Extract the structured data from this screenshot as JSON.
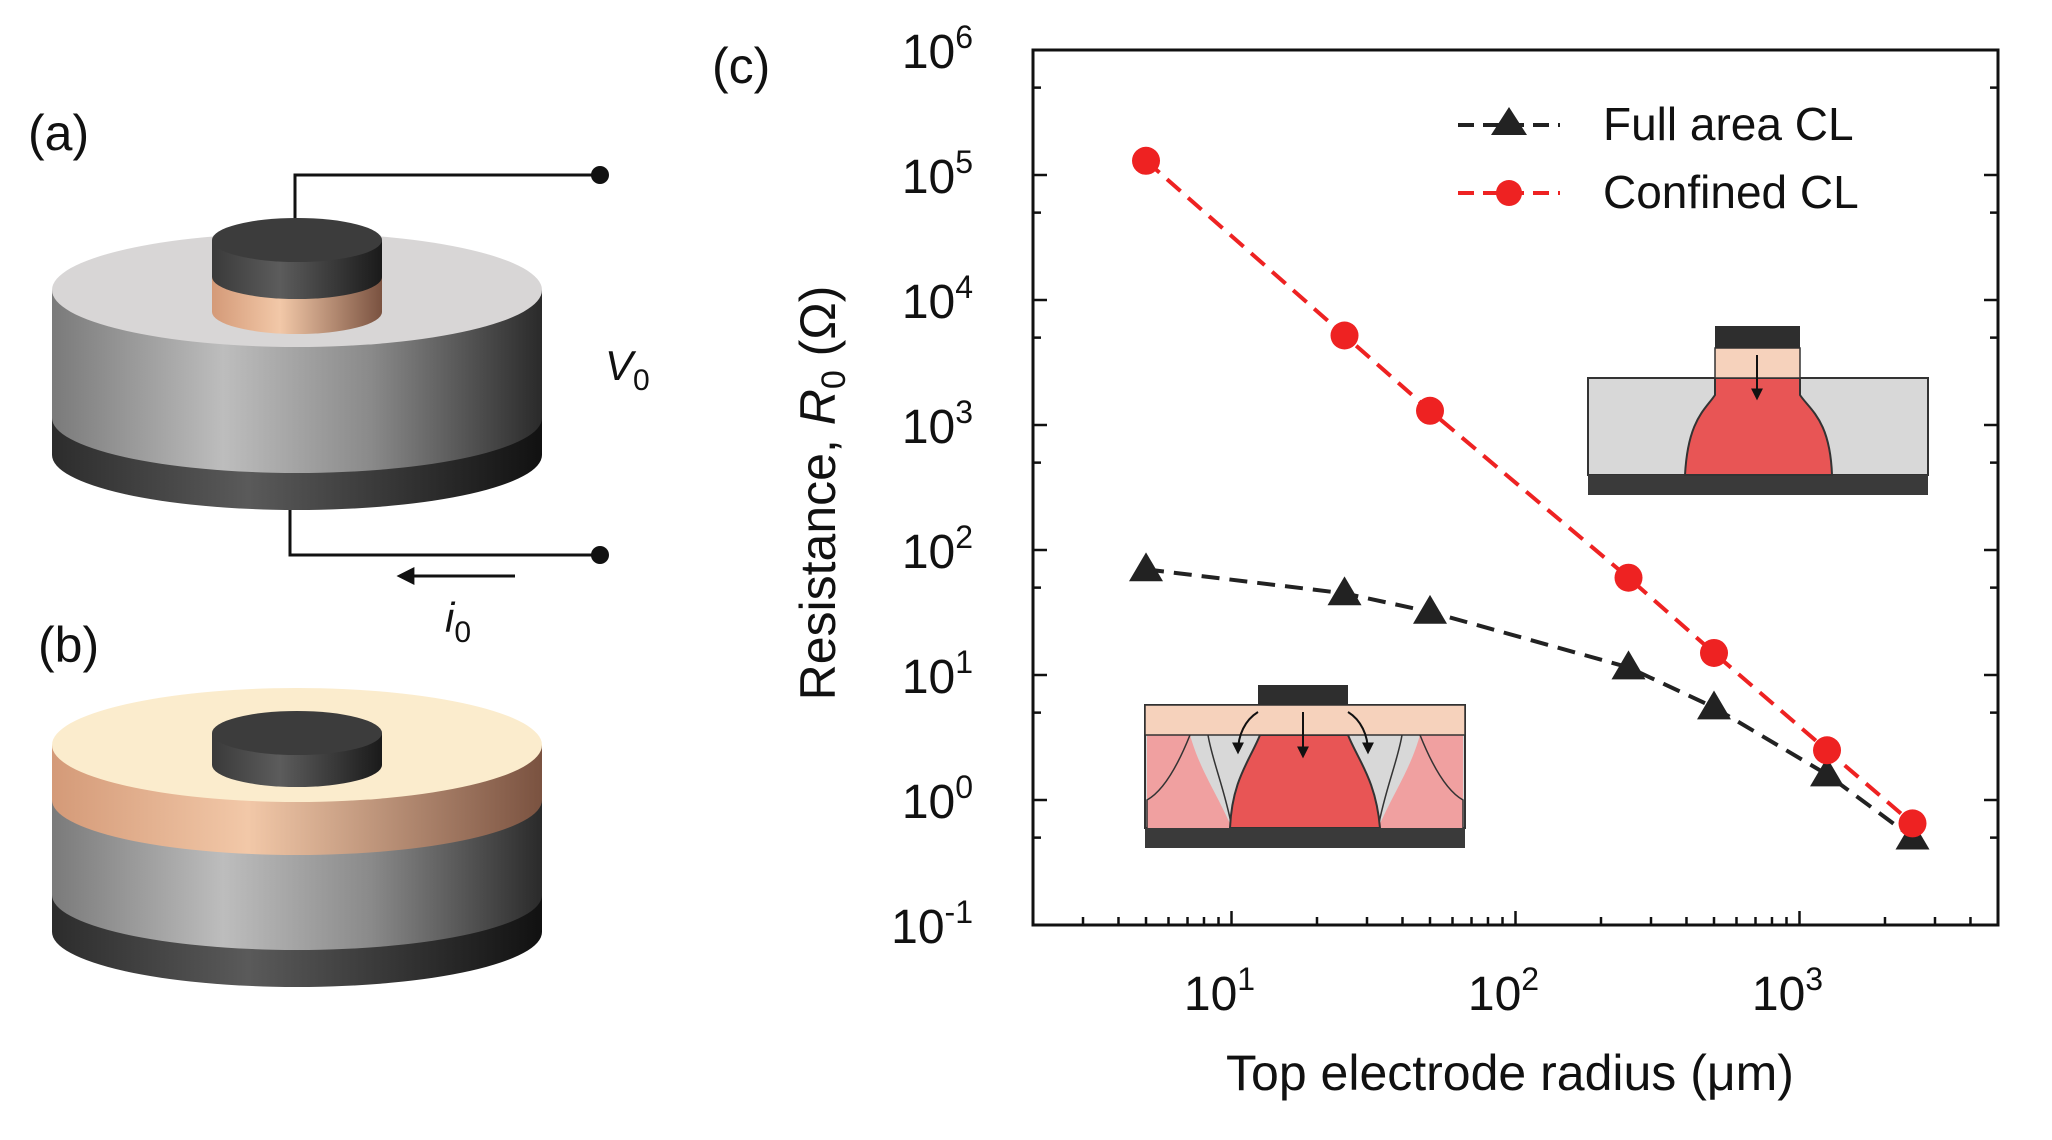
{
  "panels": {
    "a": "(a)",
    "b": "(b)",
    "c": "(c)"
  },
  "circuit": {
    "voltage_symbol": "V",
    "voltage_sub": "0",
    "current_symbol": "i",
    "current_sub": "0"
  },
  "chart_data": {
    "type": "line",
    "xscale": "log",
    "yscale": "log",
    "xlabel": "Top electrode radius (μm)",
    "ylabel_prefix": "Resistance, ",
    "ylabel_symbol": "R",
    "ylabel_sub": "0",
    "ylabel_unit": " (Ω)",
    "xlim": [
      2,
      5000
    ],
    "ylim": [
      0.1,
      1000000
    ],
    "xticks": [
      {
        "value": 10,
        "base": "10",
        "exp": "1"
      },
      {
        "value": 100,
        "base": "10",
        "exp": "2"
      },
      {
        "value": 1000,
        "base": "10",
        "exp": "3"
      }
    ],
    "yticks": [
      {
        "value": 0.1,
        "base": "10",
        "exp": "-1"
      },
      {
        "value": 1,
        "base": "10",
        "exp": "0"
      },
      {
        "value": 10,
        "base": "10",
        "exp": "1"
      },
      {
        "value": 100,
        "base": "10",
        "exp": "2"
      },
      {
        "value": 1000,
        "base": "10",
        "exp": "3"
      },
      {
        "value": 10000,
        "base": "10",
        "exp": "4"
      },
      {
        "value": 100000,
        "base": "10",
        "exp": "5"
      },
      {
        "value": 1000000,
        "base": "10",
        "exp": "6"
      }
    ],
    "legend_position": "top-right",
    "series": [
      {
        "name": "Full area CL",
        "color": "#222222",
        "marker": "triangle",
        "line": "dashed",
        "x": [
          5,
          25,
          50,
          250,
          500,
          1250,
          2500
        ],
        "y": [
          70,
          45,
          32,
          11.5,
          5.5,
          1.6,
          0.5
        ]
      },
      {
        "name": "Confined CL",
        "color": "#ee2222",
        "marker": "circle",
        "line": "dashed",
        "x": [
          5,
          25,
          50,
          250,
          500,
          1250,
          2500
        ],
        "y": [
          130000,
          5200,
          1300,
          60,
          15,
          2.5,
          0.65
        ]
      }
    ]
  },
  "colors": {
    "electrode": "#2e2e2e",
    "layer_copper": "#e0ac8a",
    "layer_cream": "#fbeccd",
    "substrate_gray": "#9a9a9a",
    "current_red": "#e85555",
    "current_pink": "#f0a0a0"
  }
}
